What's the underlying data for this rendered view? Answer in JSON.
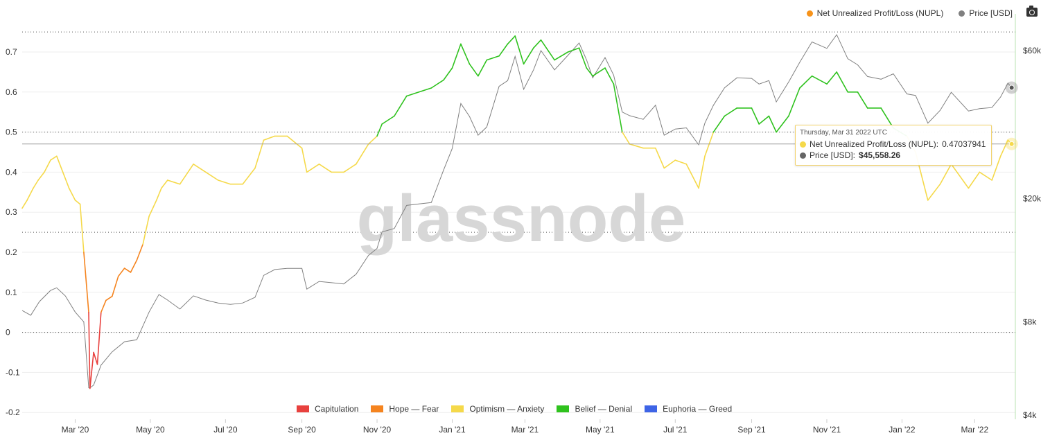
{
  "legend_top": [
    {
      "label": "Net Unrealized Profit/Loss (NUPL)",
      "color": "#f7931a"
    },
    {
      "label": "Price [USD]",
      "color": "#808080"
    }
  ],
  "toolbar": {
    "camera_icon": "camera-icon"
  },
  "watermark": "glassnode",
  "tooltip": {
    "date": "Thursday, Mar 31 2022 UTC",
    "nupl_label": "Net Unrealized Profit/Loss (NUPL):",
    "nupl_value": "0.47037941",
    "price_label": "Price [USD]:",
    "price_value": "$45,558.26"
  },
  "colors": {
    "capitulation": "#e8413e",
    "hope_fear": "#f5841f",
    "optimism_anxiety": "#f5d94a",
    "belief_denial": "#2fc21e",
    "euphoria_greed": "#3e64e6",
    "price": "#808080"
  },
  "chart_data": {
    "type": "line",
    "x_ticks": [
      "Mar '20",
      "May '20",
      "Jul '20",
      "Sep '20",
      "Nov '20",
      "Jan '21",
      "Mar '21",
      "May '21",
      "Jul '21",
      "Sep '21",
      "Nov '21",
      "Jan '22",
      "Mar '22"
    ],
    "y_left_ticks": [
      "0.7",
      "0.6",
      "0.5",
      "0.4",
      "0.3",
      "0.2",
      "0.1",
      "0",
      "-0.1",
      "-0.2"
    ],
    "y_left_range": [
      -0.2,
      0.75
    ],
    "y_right_ticks": [
      "$60k",
      "$20k",
      "$8k",
      "$4k"
    ],
    "y_right_values": [
      60000,
      20000,
      8000,
      4000
    ],
    "y_right_scale": "log",
    "y_right_range": [
      4000,
      68000
    ],
    "x_range": [
      "2020-01-18",
      "2022-04-03"
    ],
    "legend_regimes": [
      {
        "label": "Capitulation",
        "color_key": "capitulation",
        "range": [
          -1,
          0
        ]
      },
      {
        "label": "Hope — Fear",
        "color_key": "hope_fear",
        "range": [
          0,
          0.25
        ]
      },
      {
        "label": "Optimism — Anxiety",
        "color_key": "optimism_anxiety",
        "range": [
          0.25,
          0.5
        ]
      },
      {
        "label": "Belief — Denial",
        "color_key": "belief_denial",
        "range": [
          0.5,
          0.75
        ]
      },
      {
        "label": "Euphoria — Greed",
        "color_key": "euphoria_greed",
        "range": [
          0.75,
          1
        ]
      }
    ],
    "series": [
      {
        "name": "Net Unrealized Profit/Loss (NUPL)",
        "axis": "left",
        "points": [
          [
            "2020-01-18",
            0.31
          ],
          [
            "2020-01-22",
            0.33
          ],
          [
            "2020-01-27",
            0.36
          ],
          [
            "2020-01-31",
            0.38
          ],
          [
            "2020-02-05",
            0.4
          ],
          [
            "2020-02-10",
            0.43
          ],
          [
            "2020-02-15",
            0.44
          ],
          [
            "2020-02-20",
            0.4
          ],
          [
            "2020-02-25",
            0.36
          ],
          [
            "2020-03-01",
            0.33
          ],
          [
            "2020-03-05",
            0.32
          ],
          [
            "2020-03-08",
            0.2
          ],
          [
            "2020-03-12",
            0.05
          ],
          [
            "2020-03-13",
            -0.14
          ],
          [
            "2020-03-16",
            -0.05
          ],
          [
            "2020-03-19",
            -0.08
          ],
          [
            "2020-03-22",
            0.05
          ],
          [
            "2020-03-26",
            0.08
          ],
          [
            "2020-03-31",
            0.09
          ],
          [
            "2020-04-05",
            0.14
          ],
          [
            "2020-04-10",
            0.16
          ],
          [
            "2020-04-15",
            0.15
          ],
          [
            "2020-04-20",
            0.18
          ],
          [
            "2020-04-25",
            0.22
          ],
          [
            "2020-04-30",
            0.29
          ],
          [
            "2020-05-06",
            0.33
          ],
          [
            "2020-05-10",
            0.36
          ],
          [
            "2020-05-15",
            0.38
          ],
          [
            "2020-05-25",
            0.37
          ],
          [
            "2020-06-05",
            0.42
          ],
          [
            "2020-06-15",
            0.4
          ],
          [
            "2020-06-25",
            0.38
          ],
          [
            "2020-07-05",
            0.37
          ],
          [
            "2020-07-15",
            0.37
          ],
          [
            "2020-07-25",
            0.41
          ],
          [
            "2020-08-01",
            0.48
          ],
          [
            "2020-08-10",
            0.49
          ],
          [
            "2020-08-20",
            0.49
          ],
          [
            "2020-09-01",
            0.46
          ],
          [
            "2020-09-05",
            0.4
          ],
          [
            "2020-09-15",
            0.42
          ],
          [
            "2020-09-25",
            0.4
          ],
          [
            "2020-10-05",
            0.4
          ],
          [
            "2020-10-15",
            0.42
          ],
          [
            "2020-10-25",
            0.47
          ],
          [
            "2020-11-01",
            0.49
          ],
          [
            "2020-11-05",
            0.52
          ],
          [
            "2020-11-15",
            0.54
          ],
          [
            "2020-11-25",
            0.59
          ],
          [
            "2020-12-05",
            0.6
          ],
          [
            "2020-12-15",
            0.61
          ],
          [
            "2020-12-25",
            0.63
          ],
          [
            "2021-01-01",
            0.66
          ],
          [
            "2021-01-08",
            0.72
          ],
          [
            "2021-01-15",
            0.67
          ],
          [
            "2021-01-22",
            0.64
          ],
          [
            "2021-01-29",
            0.68
          ],
          [
            "2021-02-08",
            0.69
          ],
          [
            "2021-02-15",
            0.72
          ],
          [
            "2021-02-21",
            0.74
          ],
          [
            "2021-02-28",
            0.67
          ],
          [
            "2021-03-08",
            0.71
          ],
          [
            "2021-03-14",
            0.73
          ],
          [
            "2021-03-25",
            0.68
          ],
          [
            "2021-04-05",
            0.7
          ],
          [
            "2021-04-14",
            0.71
          ],
          [
            "2021-04-20",
            0.66
          ],
          [
            "2021-04-25",
            0.64
          ],
          [
            "2021-05-05",
            0.66
          ],
          [
            "2021-05-12",
            0.62
          ],
          [
            "2021-05-19",
            0.5
          ],
          [
            "2021-05-25",
            0.47
          ],
          [
            "2021-06-05",
            0.46
          ],
          [
            "2021-06-15",
            0.46
          ],
          [
            "2021-06-22",
            0.41
          ],
          [
            "2021-07-01",
            0.43
          ],
          [
            "2021-07-10",
            0.42
          ],
          [
            "2021-07-20",
            0.36
          ],
          [
            "2021-07-25",
            0.44
          ],
          [
            "2021-08-01",
            0.5
          ],
          [
            "2021-08-10",
            0.54
          ],
          [
            "2021-08-20",
            0.56
          ],
          [
            "2021-09-01",
            0.56
          ],
          [
            "2021-09-07",
            0.52
          ],
          [
            "2021-09-15",
            0.54
          ],
          [
            "2021-09-21",
            0.5
          ],
          [
            "2021-10-01",
            0.54
          ],
          [
            "2021-10-10",
            0.61
          ],
          [
            "2021-10-20",
            0.64
          ],
          [
            "2021-11-01",
            0.62
          ],
          [
            "2021-11-09",
            0.65
          ],
          [
            "2021-11-18",
            0.6
          ],
          [
            "2021-11-26",
            0.6
          ],
          [
            "2021-12-04",
            0.56
          ],
          [
            "2021-12-15",
            0.56
          ],
          [
            "2021-12-25",
            0.51
          ],
          [
            "2022-01-05",
            0.49
          ],
          [
            "2022-01-12",
            0.45
          ],
          [
            "2022-01-22",
            0.33
          ],
          [
            "2022-02-01",
            0.37
          ],
          [
            "2022-02-10",
            0.42
          ],
          [
            "2022-02-24",
            0.36
          ],
          [
            "2022-03-05",
            0.4
          ],
          [
            "2022-03-15",
            0.38
          ],
          [
            "2022-03-22",
            0.44
          ],
          [
            "2022-03-28",
            0.48
          ],
          [
            "2022-03-31",
            0.47
          ]
        ]
      },
      {
        "name": "Price [USD]",
        "axis": "right",
        "points": [
          [
            "2020-01-18",
            8700
          ],
          [
            "2020-01-25",
            8400
          ],
          [
            "2020-02-01",
            9300
          ],
          [
            "2020-02-10",
            10100
          ],
          [
            "2020-02-15",
            10300
          ],
          [
            "2020-02-22",
            9700
          ],
          [
            "2020-03-01",
            8600
          ],
          [
            "2020-03-08",
            8000
          ],
          [
            "2020-03-12",
            4900
          ],
          [
            "2020-03-13",
            4900
          ],
          [
            "2020-03-16",
            5000
          ],
          [
            "2020-03-22",
            5800
          ],
          [
            "2020-03-31",
            6400
          ],
          [
            "2020-04-10",
            6900
          ],
          [
            "2020-04-20",
            7000
          ],
          [
            "2020-04-30",
            8600
          ],
          [
            "2020-05-08",
            9800
          ],
          [
            "2020-05-15",
            9400
          ],
          [
            "2020-05-25",
            8800
          ],
          [
            "2020-06-05",
            9700
          ],
          [
            "2020-06-15",
            9400
          ],
          [
            "2020-06-25",
            9200
          ],
          [
            "2020-07-05",
            9100
          ],
          [
            "2020-07-15",
            9200
          ],
          [
            "2020-07-25",
            9600
          ],
          [
            "2020-08-01",
            11300
          ],
          [
            "2020-08-10",
            11800
          ],
          [
            "2020-08-20",
            11900
          ],
          [
            "2020-09-01",
            11900
          ],
          [
            "2020-09-05",
            10200
          ],
          [
            "2020-09-15",
            10800
          ],
          [
            "2020-09-25",
            10700
          ],
          [
            "2020-10-05",
            10600
          ],
          [
            "2020-10-15",
            11400
          ],
          [
            "2020-10-25",
            13100
          ],
          [
            "2020-11-01",
            13800
          ],
          [
            "2020-11-05",
            15600
          ],
          [
            "2020-11-15",
            16000
          ],
          [
            "2020-11-25",
            19000
          ],
          [
            "2020-12-05",
            19200
          ],
          [
            "2020-12-15",
            19400
          ],
          [
            "2020-12-25",
            24700
          ],
          [
            "2021-01-01",
            29000
          ],
          [
            "2021-01-08",
            40500
          ],
          [
            "2021-01-15",
            36800
          ],
          [
            "2021-01-22",
            32000
          ],
          [
            "2021-01-29",
            34000
          ],
          [
            "2021-02-08",
            46000
          ],
          [
            "2021-02-15",
            48000
          ],
          [
            "2021-02-21",
            57500
          ],
          [
            "2021-02-28",
            45000
          ],
          [
            "2021-03-08",
            52000
          ],
          [
            "2021-03-14",
            60000
          ],
          [
            "2021-03-25",
            52000
          ],
          [
            "2021-04-05",
            58000
          ],
          [
            "2021-04-14",
            63500
          ],
          [
            "2021-04-20",
            56000
          ],
          [
            "2021-04-25",
            49000
          ],
          [
            "2021-05-05",
            57000
          ],
          [
            "2021-05-12",
            50000
          ],
          [
            "2021-05-19",
            38000
          ],
          [
            "2021-05-25",
            37000
          ],
          [
            "2021-06-05",
            36000
          ],
          [
            "2021-06-15",
            40000
          ],
          [
            "2021-06-22",
            32000
          ],
          [
            "2021-07-01",
            33500
          ],
          [
            "2021-07-10",
            33800
          ],
          [
            "2021-07-20",
            29800
          ],
          [
            "2021-07-25",
            35000
          ],
          [
            "2021-08-01",
            40000
          ],
          [
            "2021-08-10",
            45500
          ],
          [
            "2021-08-20",
            49000
          ],
          [
            "2021-09-01",
            48800
          ],
          [
            "2021-09-07",
            46800
          ],
          [
            "2021-09-15",
            48000
          ],
          [
            "2021-09-21",
            41000
          ],
          [
            "2021-10-01",
            47500
          ],
          [
            "2021-10-10",
            55000
          ],
          [
            "2021-10-20",
            64000
          ],
          [
            "2021-11-01",
            61000
          ],
          [
            "2021-11-09",
            67500
          ],
          [
            "2021-11-18",
            56500
          ],
          [
            "2021-11-26",
            54000
          ],
          [
            "2021-12-04",
            49500
          ],
          [
            "2021-12-15",
            48500
          ],
          [
            "2021-12-25",
            50500
          ],
          [
            "2022-01-05",
            43500
          ],
          [
            "2022-01-12",
            43000
          ],
          [
            "2022-01-22",
            35000
          ],
          [
            "2022-02-01",
            38500
          ],
          [
            "2022-02-10",
            44000
          ],
          [
            "2022-02-24",
            38300
          ],
          [
            "2022-03-05",
            39000
          ],
          [
            "2022-03-15",
            39300
          ],
          [
            "2022-03-22",
            42500
          ],
          [
            "2022-03-28",
            47100
          ],
          [
            "2022-03-31",
            45558
          ]
        ]
      }
    ],
    "highlight": {
      "date": "2022-03-31",
      "nupl": 0.47037941,
      "price": 45558.26
    },
    "grid": "dotted horizontal",
    "legend_top_placement": "top-right",
    "legend_bottom_placement": "bottom-center"
  }
}
